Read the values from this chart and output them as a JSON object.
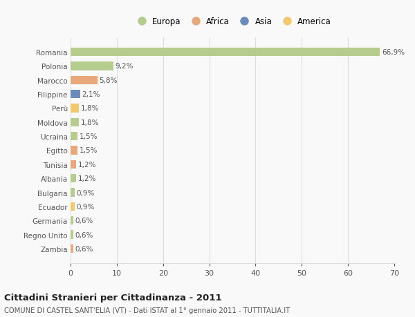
{
  "countries": [
    "Romania",
    "Polonia",
    "Marocco",
    "Filippine",
    "Perù",
    "Moldova",
    "Ucraina",
    "Egitto",
    "Tunisia",
    "Albania",
    "Bulgaria",
    "Ecuador",
    "Germania",
    "Regno Unito",
    "Zambia"
  ],
  "values": [
    66.9,
    9.2,
    5.8,
    2.1,
    1.8,
    1.8,
    1.5,
    1.5,
    1.2,
    1.2,
    0.9,
    0.9,
    0.6,
    0.6,
    0.6
  ],
  "labels": [
    "66,9%",
    "9,2%",
    "5,8%",
    "2,1%",
    "1,8%",
    "1,8%",
    "1,5%",
    "1,5%",
    "1,2%",
    "1,2%",
    "0,9%",
    "0,9%",
    "0,6%",
    "0,6%",
    "0,6%"
  ],
  "colors": [
    "#b5cc8e",
    "#b5cc8e",
    "#e8a87c",
    "#6b8cba",
    "#f0c96e",
    "#b5cc8e",
    "#b5cc8e",
    "#e8a87c",
    "#e8a87c",
    "#b5cc8e",
    "#b5cc8e",
    "#f0c96e",
    "#b5cc8e",
    "#b5cc8e",
    "#e8a87c"
  ],
  "legend_labels": [
    "Europa",
    "Africa",
    "Asia",
    "America"
  ],
  "legend_colors": [
    "#b5cc8e",
    "#e8a87c",
    "#6b8cba",
    "#f0c96e"
  ],
  "xlim": [
    0,
    70
  ],
  "xticks": [
    0,
    10,
    20,
    30,
    40,
    50,
    60,
    70
  ],
  "title": "Cittadini Stranieri per Cittadinanza - 2011",
  "subtitle": "COMUNE DI CASTEL SANT'ELIA (VT) - Dati ISTAT al 1° gennaio 2011 - TUTTITALIA.IT",
  "bg_color": "#f9f9f9",
  "grid_color": "#dddddd",
  "bar_height": 0.6
}
